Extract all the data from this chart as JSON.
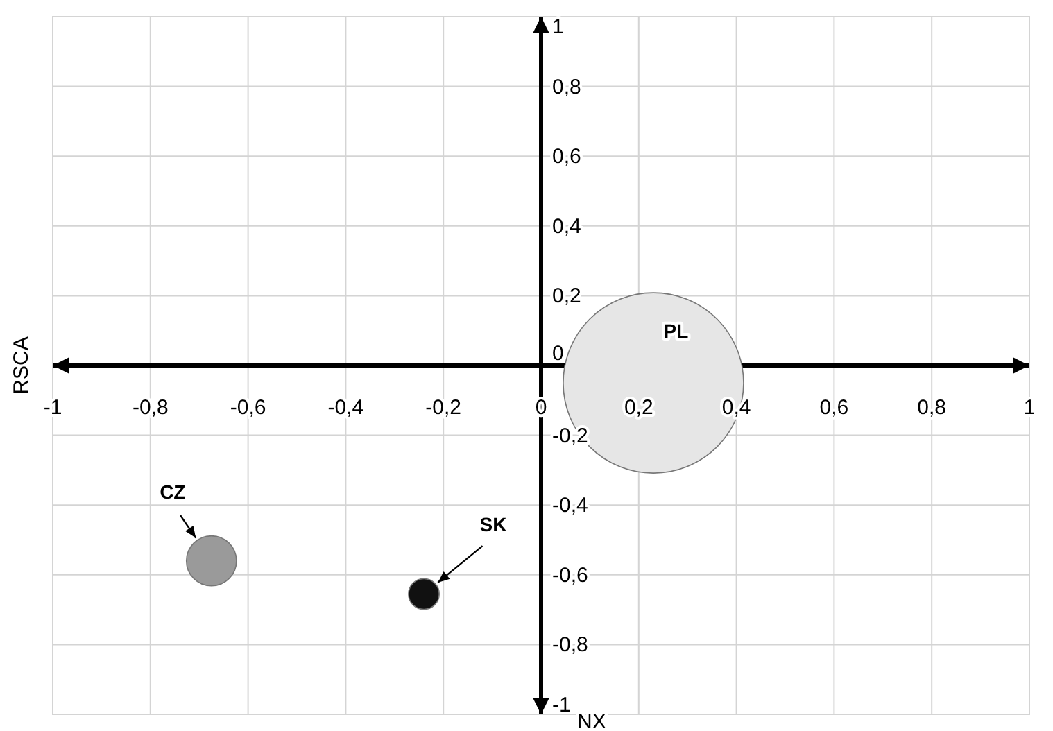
{
  "chart_data": {
    "type": "bubble",
    "xlabel": "NX",
    "ylabel": "RSCA",
    "xlim": [
      -1,
      1
    ],
    "ylim": [
      -1,
      1
    ],
    "xticks": [
      -1,
      {
        "value": -0.8,
        "label": "-0,8"
      },
      {
        "value": -0.6,
        "label": "-0,6"
      },
      {
        "value": -0.4,
        "label": "-0,4"
      },
      {
        "value": -0.2,
        "label": "-0,2"
      },
      0,
      {
        "value": 0.2,
        "label": "0,2"
      },
      {
        "value": 0.4,
        "label": "0,4"
      },
      {
        "value": 0.6,
        "label": "0,6"
      },
      {
        "value": 0.8,
        "label": "0,8"
      },
      1
    ],
    "yticks": [
      -1,
      {
        "value": -0.8,
        "label": "-0,8"
      },
      {
        "value": -0.6,
        "label": "-0,6"
      },
      {
        "value": -0.4,
        "label": "-0,4"
      },
      {
        "value": -0.2,
        "label": "-0,2"
      },
      0,
      {
        "value": 0.2,
        "label": "0,2"
      },
      {
        "value": 0.4,
        "label": "0,4"
      },
      {
        "value": 0.6,
        "label": "0,6"
      },
      {
        "value": 0.8,
        "label": "0,8"
      },
      1
    ],
    "grid": true,
    "series": [
      {
        "name": "PL",
        "color": "#e6e6e6",
        "x": [
          0.23
        ],
        "values": [
          -0.05
        ],
        "sizes": [
          1
        ]
      },
      {
        "name": "CZ",
        "color": "#9a9a9a",
        "x": [
          -0.675
        ],
        "values": [
          -0.56
        ],
        "sizes": [
          0.077
        ]
      },
      {
        "name": "SK",
        "color": "#111111",
        "x": [
          -0.24
        ],
        "values": [
          -0.655
        ],
        "sizes": [
          0.029
        ]
      }
    ]
  }
}
